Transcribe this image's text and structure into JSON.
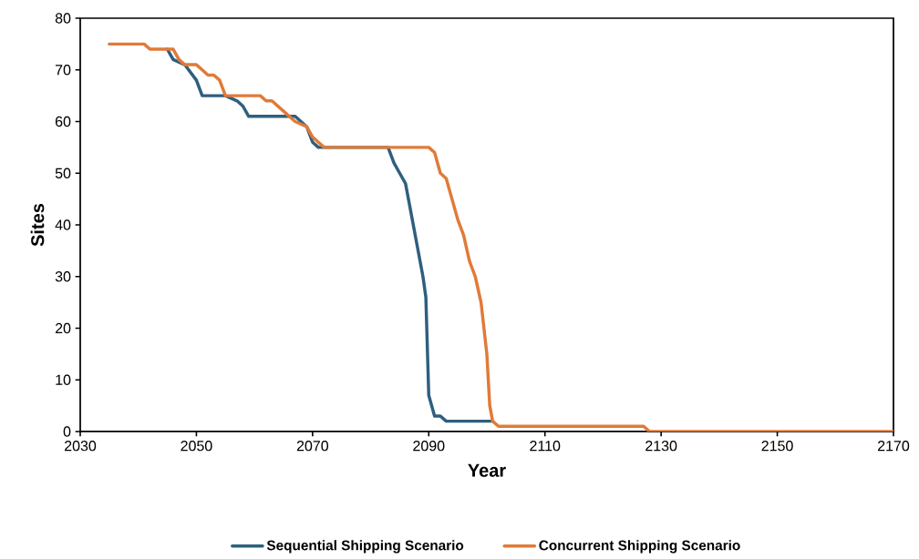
{
  "chart_data": {
    "type": "line",
    "xlabel": "Year",
    "ylabel": "Sites",
    "xlim": [
      2030,
      2170
    ],
    "xticks": [
      2030,
      2050,
      2070,
      2090,
      2110,
      2130,
      2150,
      2170
    ],
    "ylim": [
      0,
      80
    ],
    "yticks": [
      0,
      10,
      20,
      30,
      40,
      50,
      60,
      70,
      80
    ],
    "grid": false,
    "legend": "bottom",
    "line_style": "solid",
    "series": [
      {
        "name": "Sequential Shipping Scenario",
        "color": "#2e5f7f",
        "x": [
          2045,
          2046,
          2048,
          2050,
          2051,
          2055,
          2057,
          2058,
          2059,
          2060,
          2067,
          2069,
          2070,
          2071,
          2072,
          2083,
          2084,
          2085,
          2086,
          2087,
          2088,
          2089,
          2089.5,
          2090,
          2091,
          2092,
          2093,
          2101
        ],
        "values": [
          74,
          72,
          71,
          68,
          65,
          65,
          64,
          63,
          61,
          61,
          61,
          59,
          56,
          55,
          55,
          55,
          52,
          50,
          48,
          42,
          36,
          30,
          26,
          7,
          3,
          3,
          2,
          2
        ]
      },
      {
        "name": "Concurrent Shipping Scenario",
        "color": "#e07b39",
        "x": [
          2035,
          2041,
          2042,
          2046,
          2047,
          2048,
          2050,
          2051,
          2052,
          2053,
          2054,
          2055,
          2061,
          2062,
          2063,
          2065,
          2067,
          2069,
          2070,
          2071,
          2072,
          2090,
          2091,
          2092,
          2093,
          2094,
          2095,
          2096,
          2097,
          2098,
          2099,
          2100,
          2100.5,
          2101,
          2102,
          2127,
          2128,
          2170
        ],
        "values": [
          75,
          75,
          74,
          74,
          72,
          71,
          71,
          70,
          69,
          69,
          68,
          65,
          65,
          64,
          64,
          62,
          60,
          59,
          57,
          56,
          55,
          55,
          54,
          50,
          49,
          45,
          41,
          38,
          33,
          30,
          25,
          15,
          5,
          2,
          1,
          1,
          0,
          0
        ]
      }
    ]
  }
}
